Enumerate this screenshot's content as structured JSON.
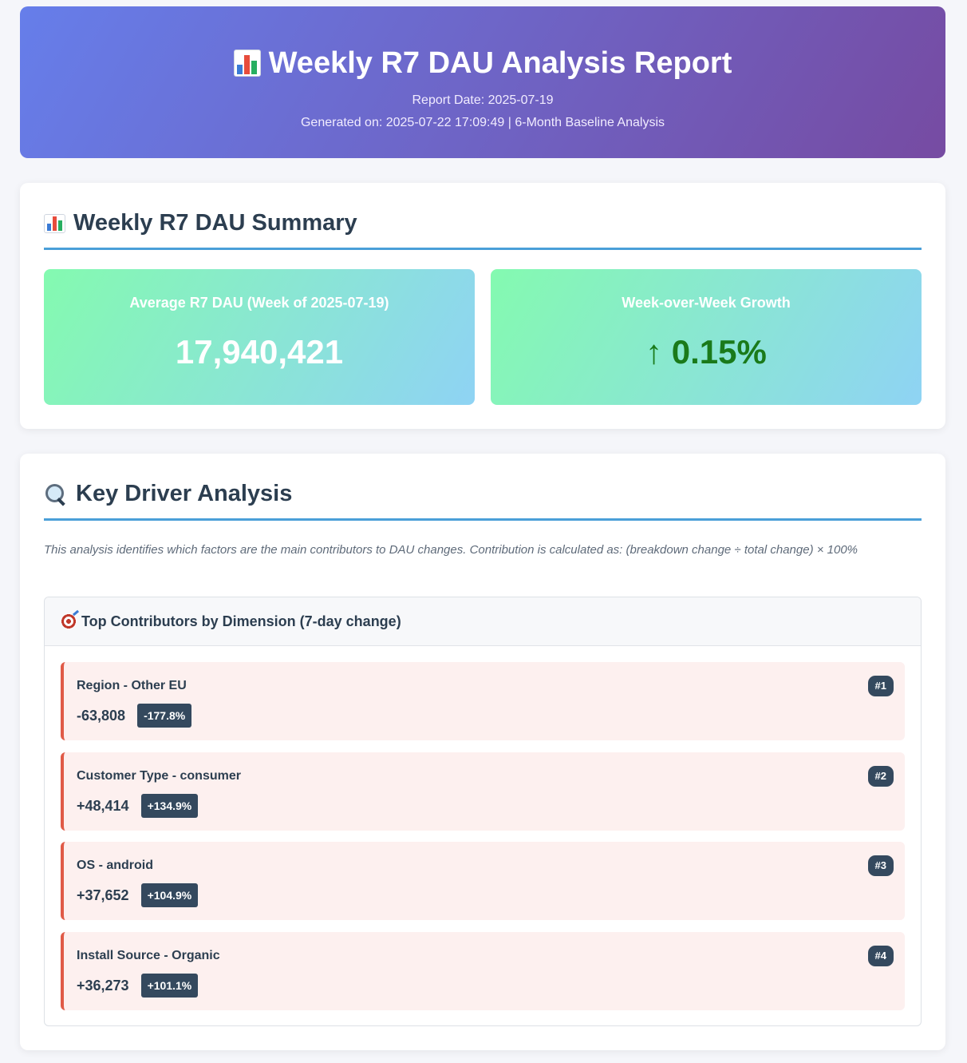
{
  "header": {
    "title": "Weekly R7 DAU Analysis Report",
    "title_icon": "bar-chart-icon",
    "report_date": "Report Date: 2025-07-19",
    "generated": "Generated on: 2025-07-22 17:09:49 | 6-Month Baseline Analysis"
  },
  "summary": {
    "title": "Weekly R7 DAU Summary",
    "title_icon": "bar-chart-icon",
    "metrics": [
      {
        "label": "Average R7 DAU (Week of 2025-07-19)",
        "value": "17,940,421"
      },
      {
        "label": "Week-over-Week Growth",
        "value": "↑ 0.15%",
        "color": "#1a7a1a"
      }
    ]
  },
  "drivers": {
    "title": "Key Driver Analysis",
    "title_icon": "magnifier-icon",
    "description": "This analysis identifies which factors are the main contributors to DAU changes. Contribution is calculated as: (breakdown change ÷ total change) × 100%",
    "panel": {
      "title": "Top Contributors by Dimension (7-day change)",
      "title_icon": "target-icon",
      "items": [
        {
          "name": "Region - Other EU",
          "change": "-63,808",
          "pct": "-177.8%",
          "rank": "#1"
        },
        {
          "name": "Customer Type - consumer",
          "change": "+48,414",
          "pct": "+134.9%",
          "rank": "#2"
        },
        {
          "name": "OS - android",
          "change": "+37,652",
          "pct": "+104.9%",
          "rank": "#3"
        },
        {
          "name": "Install Source - Organic",
          "change": "+36,273",
          "pct": "+101.1%",
          "rank": "#4"
        }
      ]
    }
  },
  "colors": {
    "header_gradient": [
      "#667eea",
      "#764ba2"
    ],
    "metric_gradient": [
      "#84fab0",
      "#8fd3f4"
    ],
    "section_underline": "#4a9fd8",
    "item_accent": "#e05a47",
    "badge": "#34495e"
  }
}
